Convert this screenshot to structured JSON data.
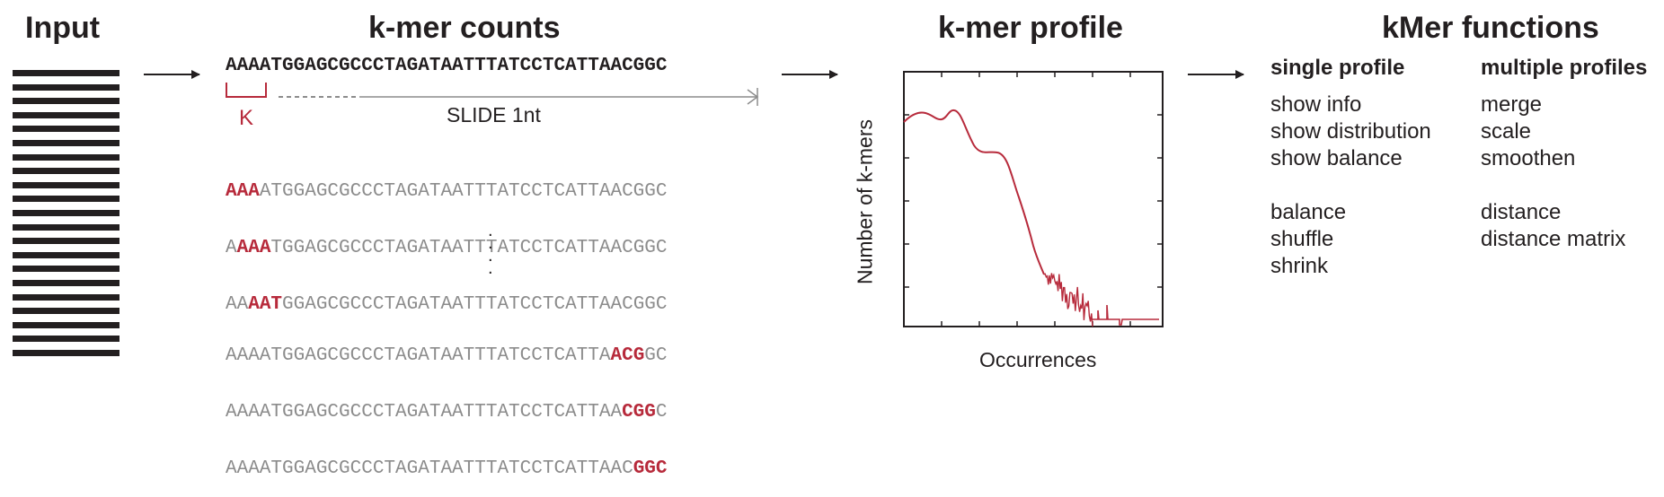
{
  "headings": {
    "input": "Input",
    "kmer_counts": "k-mer counts",
    "kmer_profile": "k-mer profile",
    "kmer_functions": "kMer functions"
  },
  "counts": {
    "sequence": "AAAATGGAGCGCCCTAGATAATTTATCCTCATTAACGGC",
    "k_label": "K",
    "slide_label": "SLIDE 1nt",
    "dots": ".\n.\n.\n.",
    "windows_top": [
      {
        "pre": "",
        "hl": "AAA",
        "post": "ATGGAGCGCCCTAGATAATTTATCCTCATTAACGGC"
      },
      {
        "pre": "A",
        "hl": "AAA",
        "post": "TGGAGCGCCCTAGATAATTTATCCTCATTAACGGC"
      },
      {
        "pre": "AA",
        "hl": "AAT",
        "post": "GGAGCGCCCTAGATAATTTATCCTCATTAACGGC"
      }
    ],
    "windows_bottom": [
      {
        "pre": "AAAATGGAGCGCCCTAGATAATTTATCCTCATTA",
        "hl": "ACG",
        "post": "GC"
      },
      {
        "pre": "AAAATGGAGCGCCCTAGATAATTTATCCTCATTAA",
        "hl": "CGG",
        "post": "C"
      },
      {
        "pre": "AAAATGGAGCGCCCTAGATAATTTATCCTCATTAAC",
        "hl": "GGC",
        "post": ""
      }
    ]
  },
  "chart_data": {
    "type": "line",
    "xlabel": "Occurrences",
    "ylabel": "Number of k-mers",
    "series": [
      {
        "color": "#b72a3b"
      }
    ],
    "grid": false
  },
  "functions": {
    "single_header": "single profile",
    "multiple_header": "multiple profiles",
    "single_group1": [
      "show info",
      "show distribution",
      "show balance"
    ],
    "single_group2": [
      "balance",
      "shuffle",
      "shrink"
    ],
    "multiple_group1": [
      "merge",
      "scale",
      "smoothen"
    ],
    "multiple_group2": [
      "distance",
      "distance matrix"
    ]
  },
  "colors": {
    "highlight": "#b72a3b",
    "grey_sequence": "#8c8c8c",
    "dark": "#231f20"
  }
}
